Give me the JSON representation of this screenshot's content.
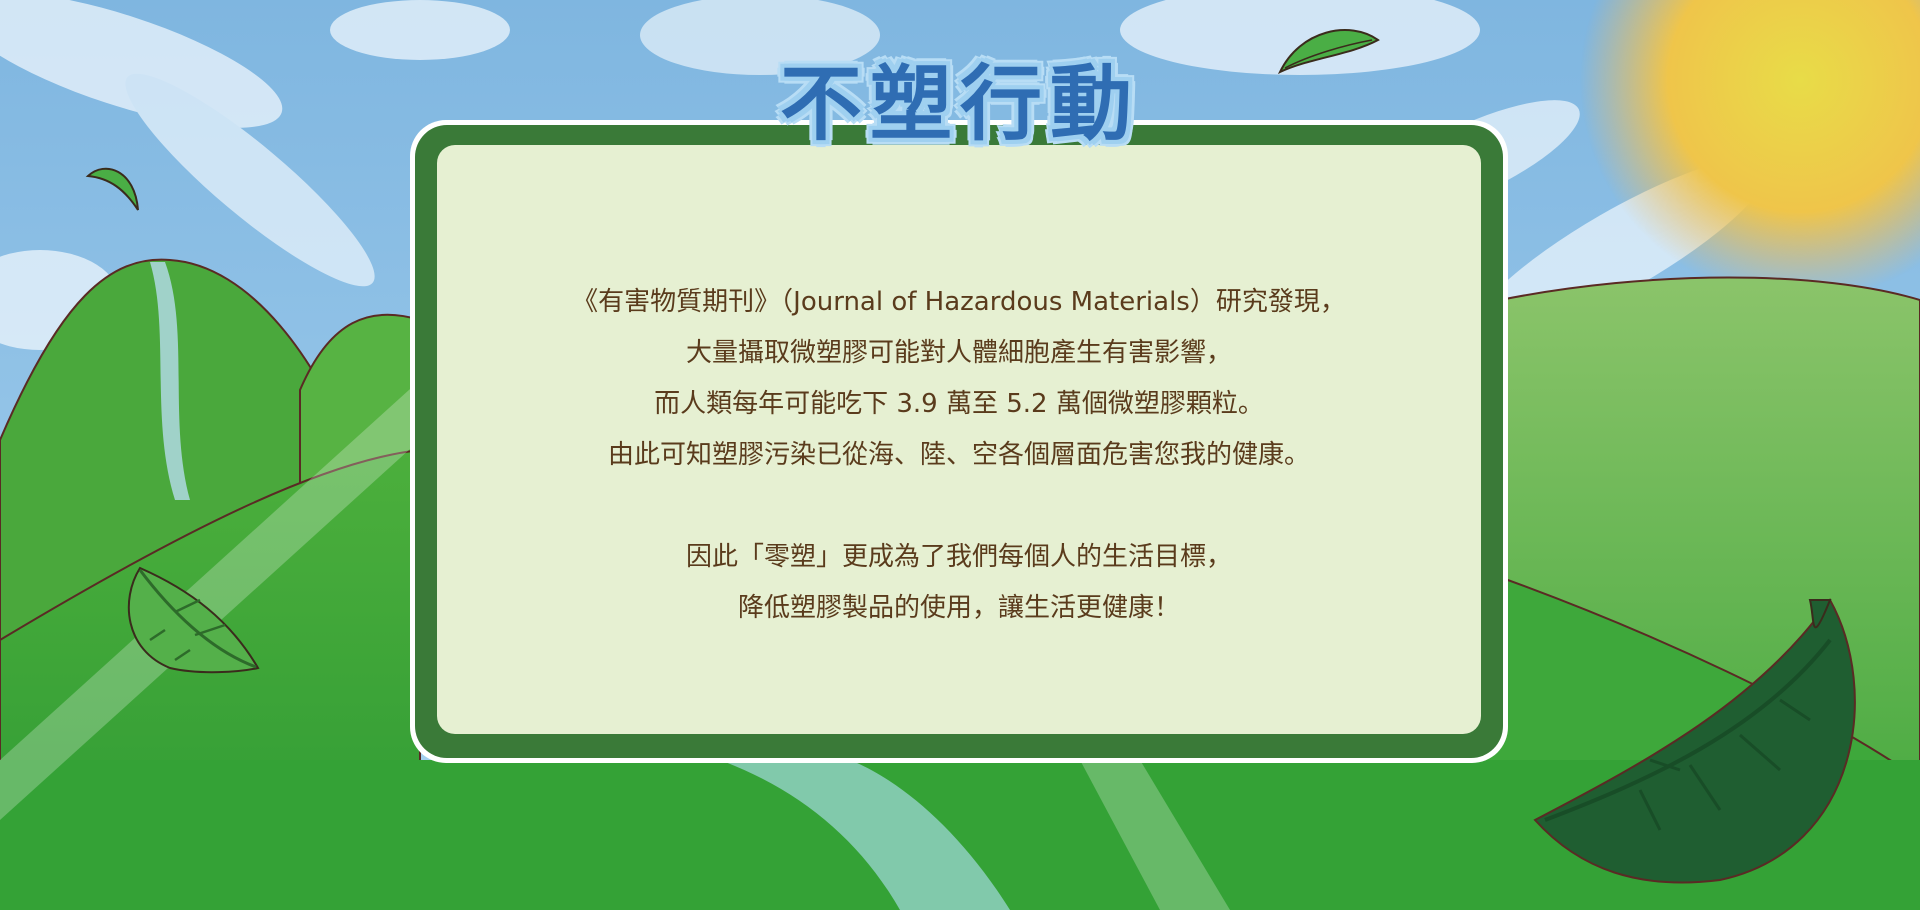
{
  "title": "不塑行動",
  "body": {
    "paragraph1": [
      "《有害物質期刊》（Journal of Hazardous Materials）研究發現，",
      "大量攝取微塑膠可能對人體細胞產生有害影響，",
      "而人類每年可能吃下 3.9 萬至 5.2 萬個微塑膠顆粒。",
      "由此可知塑膠污染已從海、陸、空各個層面危害您我的健康。"
    ],
    "paragraph2": [
      "因此「零塑」更成為了我們每個人的生活目標，",
      "降低塑膠製品的使用，讓生活更健康！"
    ]
  },
  "colors": {
    "sky": "#8fc3e8",
    "hill_green": "#3aa63a",
    "panel_border": "#3a7a38",
    "panel_fill": "#e6f0d2",
    "text": "#5a3b1c",
    "title_blue": "#2f6db3",
    "sun": "#f2d94a"
  },
  "icons": [
    "leaf-icon",
    "sun-icon"
  ]
}
